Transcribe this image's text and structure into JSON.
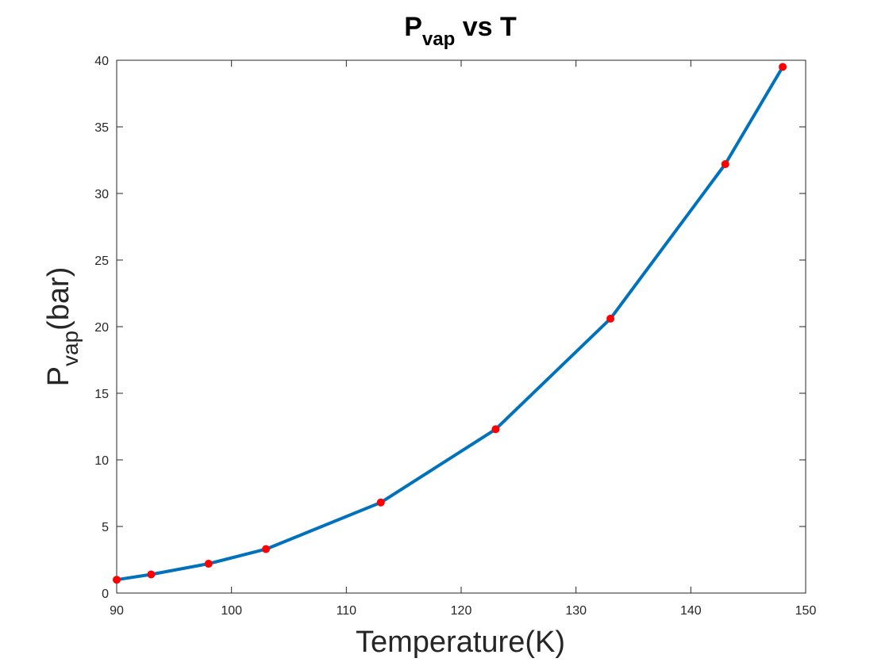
{
  "chart_data": {
    "type": "line",
    "title": {
      "main": "P",
      "subscript": "vap",
      "suffix": " vs T"
    },
    "xlabel": "Temperature(K)",
    "ylabel": {
      "main": "P",
      "subscript": "vap",
      "suffix": "(bar)"
    },
    "xlim": [
      90,
      150
    ],
    "ylim": [
      0,
      40
    ],
    "xticks": [
      90,
      100,
      110,
      120,
      130,
      140,
      150
    ],
    "yticks": [
      0,
      5,
      10,
      15,
      20,
      25,
      30,
      35,
      40
    ],
    "grid": false,
    "series": [
      {
        "x": [
          90,
          93,
          98,
          103,
          113,
          123,
          133,
          143,
          148
        ],
        "y": [
          1.0,
          1.4,
          2.2,
          3.3,
          6.8,
          12.3,
          20.6,
          32.2,
          39.5
        ],
        "line_color": "#0072BD",
        "marker_color": "#FF0000"
      }
    ]
  }
}
